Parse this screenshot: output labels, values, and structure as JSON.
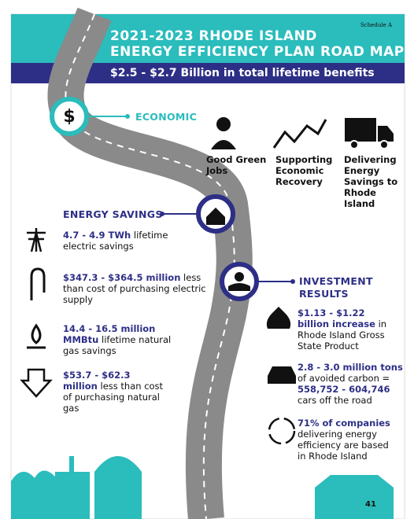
{
  "header": {
    "schedule": "Schedule A",
    "title_line1": "2021-2023 RHODE ISLAND",
    "title_line2": "ENERGY EFFICIENCY PLAN ROAD MAP",
    "banner": "$2.5 - $2.7 Billion in total lifetime benefits"
  },
  "economic": {
    "heading": "ECONOMIC",
    "items": [
      {
        "label": "Good Green Jobs"
      },
      {
        "label": "Supporting Economic Recovery"
      },
      {
        "label": "Delivering Energy Savings to Rhode Island"
      }
    ]
  },
  "energy_savings": {
    "heading": "ENERGY SAVINGS",
    "items": [
      {
        "parts": [
          {
            "text": "4.7 - 4.9 TWh",
            "emphasis": true
          },
          {
            "text": " lifetime electric savings",
            "emphasis": false
          }
        ]
      },
      {
        "parts": [
          {
            "text": "$347.3 - $364.5 million",
            "emphasis": true
          },
          {
            "text": " less than cost of purchasing electric supply",
            "emphasis": false
          }
        ]
      },
      {
        "parts": [
          {
            "text": "14.4 - 16.5 million MMBtu",
            "emphasis": true
          },
          {
            "text": " lifetime natural gas savings",
            "emphasis": false
          }
        ]
      },
      {
        "parts": [
          {
            "text": "$53.7 - $62.3 million",
            "emphasis": true
          },
          {
            "text": " less than cost of purchasing natural gas",
            "emphasis": false
          }
        ]
      }
    ]
  },
  "investment_results": {
    "heading": "INVESTMENT RESULTS",
    "items": [
      {
        "parts": [
          {
            "text": "$1.13 - $1.22 billion increase",
            "emphasis": true
          },
          {
            "text": " in Rhode Island Gross State Product",
            "emphasis": false
          }
        ]
      },
      {
        "parts": [
          {
            "text": "2.8 - 3.0 million tons",
            "emphasis": true
          },
          {
            "text": " of avoided carbon = ",
            "emphasis": false
          },
          {
            "text": "558,752 - 604,746",
            "emphasis": true
          },
          {
            "text": " cars off the road",
            "emphasis": false
          }
        ]
      },
      {
        "parts": [
          {
            "text": "71% of companies",
            "emphasis": true
          },
          {
            "text": " delivering energy efficiency are based in Rhode Island",
            "emphasis": false
          }
        ]
      }
    ]
  },
  "page_number": "41"
}
